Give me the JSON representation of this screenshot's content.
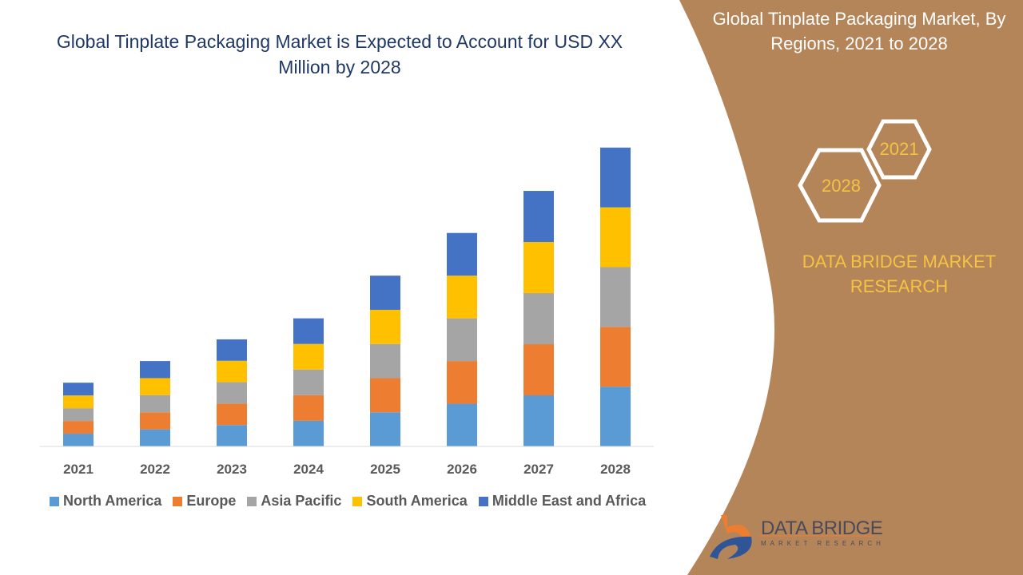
{
  "header": {
    "title": "Global Tinplate Packaging Market is Expected to Account for USD XX Million by 2028"
  },
  "side_panel": {
    "title": "Global Tinplate Packaging Market, By Regions, 2021 to 2028",
    "hex_labels": [
      "2021",
      "2028"
    ],
    "brand": "DATA BRIDGE MARKET RESEARCH",
    "logo_text": "DATA BRIDGE",
    "logo_subtext": "MARKET RESEARCH",
    "panel_color": "#B5855A"
  },
  "chart_data": {
    "type": "bar",
    "stacked": true,
    "categories": [
      "2021",
      "2022",
      "2023",
      "2024",
      "2025",
      "2026",
      "2027",
      "2028"
    ],
    "series": [
      {
        "name": "North America",
        "color": "#5B9BD5",
        "values": [
          1.0,
          1.34,
          1.68,
          2.01,
          2.68,
          3.35,
          4.01,
          4.69
        ]
      },
      {
        "name": "Europe",
        "color": "#ED7D31",
        "values": [
          1.0,
          1.34,
          1.68,
          2.01,
          2.68,
          3.35,
          4.01,
          4.69
        ]
      },
      {
        "name": "Asia Pacific",
        "color": "#A5A5A5",
        "values": [
          1.0,
          1.34,
          1.68,
          2.01,
          2.68,
          3.35,
          4.01,
          4.69
        ]
      },
      {
        "name": "South America",
        "color": "#FFC000",
        "values": [
          1.0,
          1.34,
          1.68,
          2.01,
          2.68,
          3.35,
          4.01,
          4.69
        ]
      },
      {
        "name": "Middle East and Africa",
        "color": "#4472C4",
        "values": [
          1.0,
          1.34,
          1.68,
          2.01,
          2.68,
          3.35,
          4.01,
          4.69
        ]
      }
    ],
    "ylim": [
      0,
      23.5
    ],
    "grid": false,
    "legend_position": "bottom",
    "xlabel": "",
    "ylabel": ""
  }
}
